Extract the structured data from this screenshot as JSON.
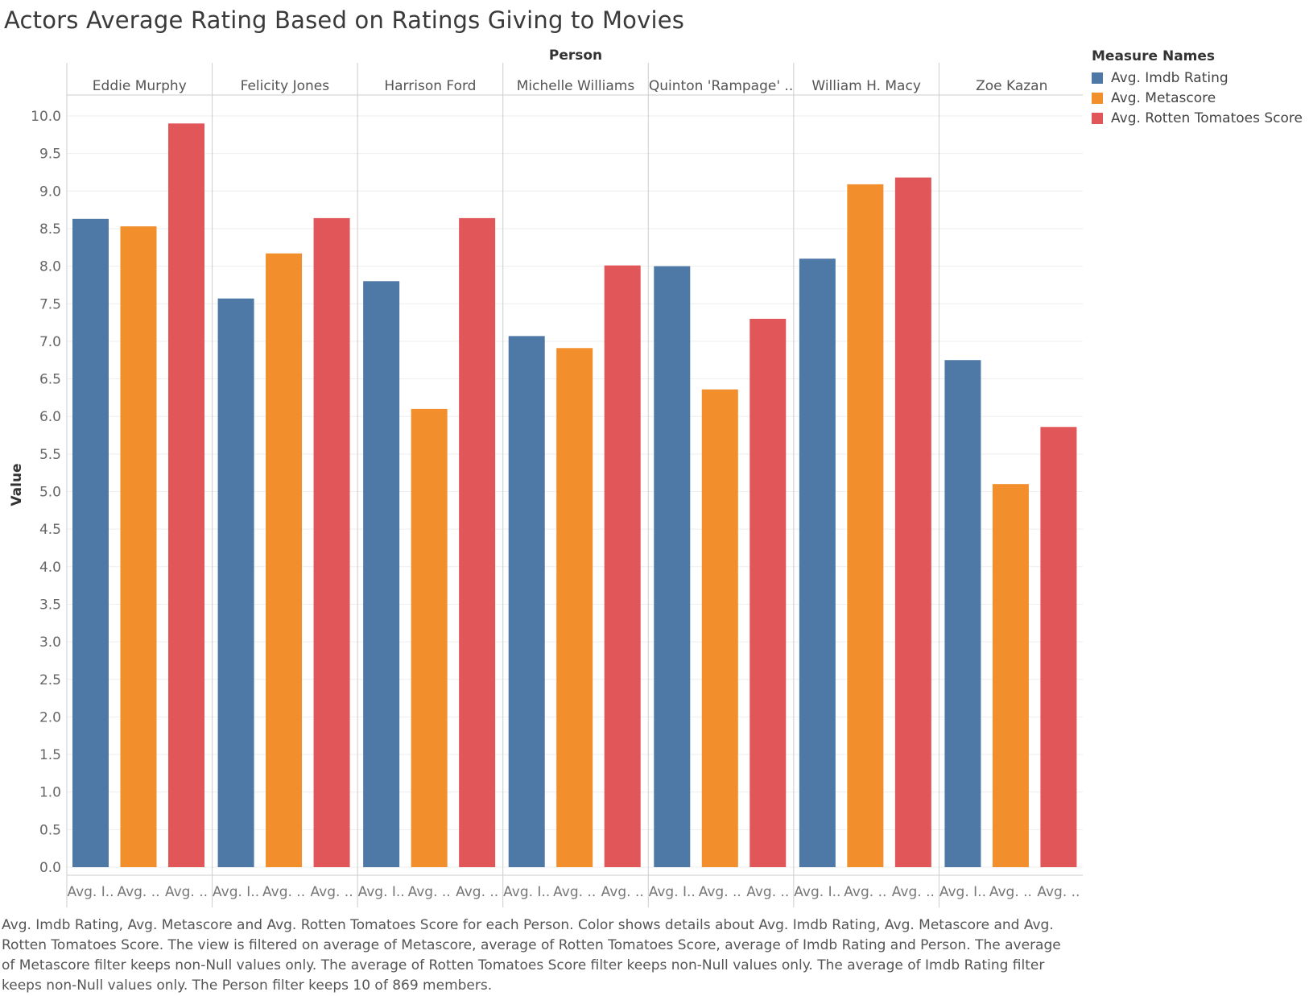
{
  "chart_data": {
    "type": "bar",
    "title": "Actors Average Rating Based on Ratings Giving to Movies",
    "column_header": "Person",
    "ylabel": "Value",
    "ylim": [
      0,
      10.5
    ],
    "yticks": [
      "0.0",
      "0.5",
      "1.0",
      "1.5",
      "2.0",
      "2.5",
      "3.0",
      "3.5",
      "4.0",
      "4.5",
      "5.0",
      "5.5",
      "6.0",
      "6.5",
      "7.0",
      "7.5",
      "8.0",
      "8.5",
      "9.0",
      "9.5",
      "10.0"
    ],
    "categories": [
      "Eddie Murphy",
      "Felicity Jones",
      "Harrison Ford",
      "Michelle Williams",
      "Quinton 'Rampage' ..",
      "William H. Macy",
      "Zoe Kazan"
    ],
    "x_tick_labels": [
      "Avg. I..",
      "Avg. ..",
      "Avg. .."
    ],
    "series": [
      {
        "name": "Avg. Imdb Rating",
        "color": "#4e79a7",
        "values": [
          8.63,
          7.57,
          7.8,
          7.07,
          8.0,
          8.1,
          6.75
        ]
      },
      {
        "name": "Avg. Metascore",
        "color": "#f28e2b",
        "values": [
          8.53,
          8.17,
          6.1,
          6.91,
          6.36,
          9.09,
          5.1
        ]
      },
      {
        "name": "Avg. Rotten Tomatoes Score",
        "color": "#e15759",
        "values": [
          9.9,
          8.64,
          8.64,
          8.01,
          7.3,
          9.18,
          5.86
        ]
      }
    ],
    "grid": true,
    "legend": {
      "title": "Measure Names",
      "placement": "top-right"
    }
  },
  "caption": "Avg. Imdb Rating, Avg. Metascore and Avg. Rotten Tomatoes Score for each Person.  Color shows details about Avg. Imdb Rating, Avg. Metascore and Avg. Rotten Tomatoes Score. The view is filtered on average of Metascore, average of Rotten Tomatoes Score, average of Imdb Rating and Person. The average of Metascore filter keeps non-Null values only. The average of Rotten Tomatoes Score filter keeps non-Null values only. The average of Imdb Rating filter keeps non-Null values only. The Person filter keeps 10 of 869 members."
}
